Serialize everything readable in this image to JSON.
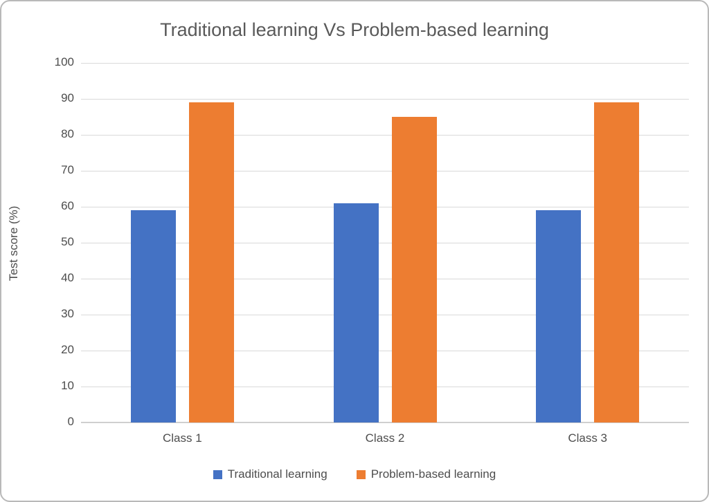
{
  "chart_data": {
    "type": "bar",
    "title": "Traditional learning Vs Problem-based learning",
    "categories": [
      "Class 1",
      "Class 2",
      "Class 3"
    ],
    "series": [
      {
        "name": "Traditional learning",
        "color": "#4472C4",
        "values": [
          59,
          61,
          59
        ]
      },
      {
        "name": "Problem-based learning",
        "color": "#ED7D31",
        "values": [
          89,
          85,
          89
        ]
      }
    ],
    "xlabel": "",
    "ylabel": "Test score (%)",
    "ylim": [
      0,
      100
    ],
    "yticks": [
      0,
      10,
      20,
      30,
      40,
      50,
      60,
      70,
      80,
      90,
      100
    ],
    "grid": "horizontal",
    "legend_position": "bottom",
    "palette": {
      "title_text": "#595959",
      "axis_text": "#4d4d4d",
      "gridline": "#d9d9d9",
      "axis_line": "#cfcfcf",
      "frame_border": "#b9b9b9",
      "background": "#ffffff"
    }
  }
}
